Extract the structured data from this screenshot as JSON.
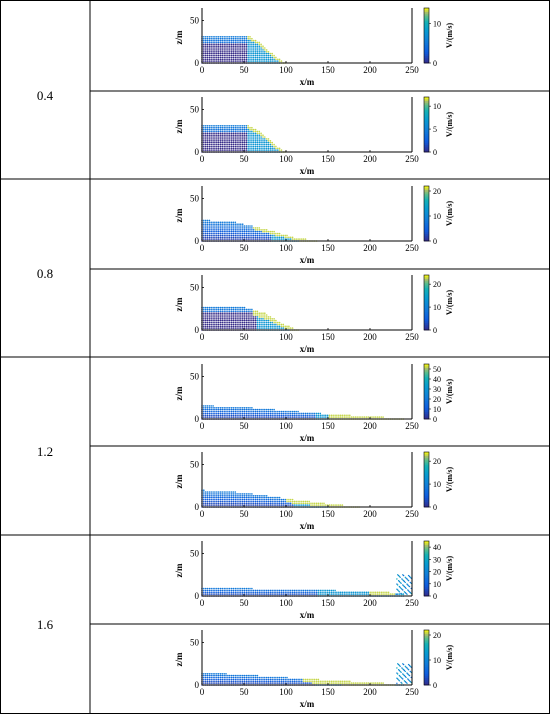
{
  "rows": [
    {
      "label": "0.4"
    },
    {
      "label": "0.8"
    },
    {
      "label": "1.2"
    },
    {
      "label": "1.6"
    }
  ],
  "chart_data": [
    {
      "type": "scatter",
      "row": 0,
      "xlabel": "x/m",
      "ylabel": "z/m",
      "cbar_label": "V/(m/s)",
      "x_ticks": [
        0,
        50,
        100,
        150,
        200,
        250
      ],
      "y_ticks": [
        0,
        50
      ],
      "xlim": [
        0,
        250
      ],
      "ylim": [
        0,
        60
      ],
      "cbar_ticks": [
        0,
        10
      ],
      "cbar_range": [
        0,
        14
      ],
      "bottom_surface": [
        [
          0,
          22
        ],
        [
          65,
          22
        ],
        [
          100,
          0
        ]
      ],
      "front": [
        [
          0,
          32
        ],
        [
          55,
          32
        ],
        [
          68,
          25
        ],
        [
          85,
          10
        ],
        [
          100,
          0
        ]
      ],
      "fast_front": [
        [
          55,
          32
        ],
        [
          68,
          25
        ],
        [
          85,
          10
        ],
        [
          100,
          0
        ]
      ],
      "deposit_extent": 100,
      "debris_right": false
    },
    {
      "type": "scatter",
      "row": 0,
      "xlabel": "x/m",
      "ylabel": "z/m",
      "cbar_label": "V/(m/s)",
      "x_ticks": [
        0,
        50,
        100,
        150,
        200,
        250
      ],
      "y_ticks": [
        0,
        50
      ],
      "xlim": [
        0,
        250
      ],
      "ylim": [
        0,
        60
      ],
      "cbar_ticks": [
        0,
        5,
        10
      ],
      "cbar_range": [
        0,
        12
      ],
      "bottom_surface": [
        [
          0,
          22
        ],
        [
          65,
          22
        ],
        [
          100,
          0
        ]
      ],
      "front": [
        [
          0,
          32
        ],
        [
          55,
          31
        ],
        [
          70,
          24
        ],
        [
          85,
          10
        ],
        [
          100,
          0
        ]
      ],
      "fast_front": [
        [
          55,
          31
        ],
        [
          70,
          24
        ],
        [
          85,
          10
        ],
        [
          100,
          0
        ]
      ],
      "deposit_extent": 100,
      "debris_right": false
    },
    {
      "type": "scatter",
      "row": 1,
      "xlabel": "x/m",
      "ylabel": "z/m",
      "cbar_label": "V/(m/s)",
      "x_ticks": [
        0,
        50,
        100,
        150,
        200,
        250
      ],
      "y_ticks": [
        0,
        50
      ],
      "xlim": [
        0,
        250
      ],
      "ylim": [
        0,
        60
      ],
      "cbar_ticks": [
        0,
        10,
        20
      ],
      "cbar_range": [
        0,
        22
      ],
      "bottom_surface": [],
      "front": [
        [
          0,
          25
        ],
        [
          40,
          22
        ],
        [
          80,
          13
        ],
        [
          110,
          4
        ],
        [
          140,
          0
        ]
      ],
      "fast_front": [
        [
          60,
          18
        ],
        [
          90,
          10
        ],
        [
          120,
          3
        ],
        [
          150,
          0
        ]
      ],
      "deposit_extent": 150,
      "debris_right": false
    },
    {
      "type": "scatter",
      "row": 1,
      "xlabel": "x/m",
      "ylabel": "z/m",
      "cbar_label": "V/(m/s)",
      "x_ticks": [
        0,
        50,
        100,
        150,
        200,
        250
      ],
      "y_ticks": [
        0,
        50
      ],
      "xlim": [
        0,
        250
      ],
      "ylim": [
        0,
        60
      ],
      "cbar_ticks": [
        0,
        10,
        20
      ],
      "cbar_range": [
        0,
        24
      ],
      "bottom_surface": [
        [
          0,
          20
        ],
        [
          70,
          20
        ],
        [
          95,
          0
        ]
      ],
      "front": [
        [
          0,
          28
        ],
        [
          50,
          27
        ],
        [
          75,
          20
        ],
        [
          95,
          8
        ],
        [
          115,
          0
        ]
      ],
      "fast_front": [
        [
          60,
          22
        ],
        [
          80,
          15
        ],
        [
          100,
          5
        ],
        [
          120,
          0
        ]
      ],
      "deposit_extent": 120,
      "debris_right": false
    },
    {
      "type": "scatter",
      "row": 2,
      "xlabel": "x/m",
      "ylabel": "z/m",
      "cbar_label": "V/(m/s)",
      "x_ticks": [
        0,
        50,
        100,
        150,
        200,
        250
      ],
      "y_ticks": [
        0,
        50
      ],
      "xlim": [
        0,
        250
      ],
      "ylim": [
        0,
        60
      ],
      "cbar_ticks": [
        0,
        10,
        20,
        30,
        40,
        50
      ],
      "cbar_range": [
        0,
        55
      ],
      "bottom_surface": [],
      "front": [
        [
          0,
          16
        ],
        [
          50,
          14
        ],
        [
          100,
          10
        ],
        [
          150,
          6
        ],
        [
          200,
          3
        ],
        [
          240,
          1
        ]
      ],
      "fast_front": [
        [
          150,
          4
        ],
        [
          200,
          3
        ],
        [
          240,
          2
        ]
      ],
      "deposit_extent": 245,
      "debris_right": false
    },
    {
      "type": "scatter",
      "row": 2,
      "xlabel": "x/m",
      "ylabel": "z/m",
      "cbar_label": "V/(m/s)",
      "x_ticks": [
        0,
        50,
        100,
        150,
        200,
        250
      ],
      "y_ticks": [
        0,
        50
      ],
      "xlim": [
        0,
        250
      ],
      "ylim": [
        0,
        60
      ],
      "cbar_ticks": [
        0,
        10,
        20
      ],
      "cbar_range": [
        0,
        24
      ],
      "bottom_surface": [],
      "front": [
        [
          0,
          20
        ],
        [
          50,
          17
        ],
        [
          100,
          10
        ],
        [
          150,
          4
        ],
        [
          190,
          0
        ]
      ],
      "fast_front": [
        [
          100,
          9
        ],
        [
          140,
          5
        ],
        [
          180,
          1
        ],
        [
          200,
          0
        ]
      ],
      "deposit_extent": 200,
      "debris_right": false
    },
    {
      "type": "scatter",
      "row": 3,
      "xlabel": "x/m",
      "ylabel": "z/m",
      "cbar_label": "V/(m/s)",
      "x_ticks": [
        0,
        50,
        100,
        150,
        200,
        250
      ],
      "y_ticks": [
        0,
        50
      ],
      "xlim": [
        0,
        250
      ],
      "ylim": [
        0,
        60
      ],
      "cbar_ticks": [
        0,
        10,
        20,
        30,
        40
      ],
      "cbar_range": [
        0,
        45
      ],
      "bottom_surface": [],
      "front": [
        [
          0,
          10
        ],
        [
          50,
          9
        ],
        [
          100,
          8
        ],
        [
          150,
          7
        ],
        [
          200,
          5
        ],
        [
          240,
          4
        ]
      ],
      "fast_front": [
        [
          200,
          4
        ],
        [
          230,
          5
        ]
      ],
      "deposit_extent": 250,
      "debris_right": true
    },
    {
      "type": "scatter",
      "row": 3,
      "xlabel": "x/m",
      "ylabel": "z/m",
      "cbar_label": "V/(m/s)",
      "x_ticks": [
        0,
        50,
        100,
        150,
        200,
        250
      ],
      "y_ticks": [
        0,
        50
      ],
      "xlim": [
        0,
        250
      ],
      "ylim": [
        0,
        60
      ],
      "cbar_ticks": [
        0,
        10,
        20
      ],
      "cbar_range": [
        0,
        22
      ],
      "bottom_surface": [],
      "front": [
        [
          0,
          15
        ],
        [
          50,
          12
        ],
        [
          100,
          9
        ],
        [
          150,
          6
        ],
        [
          200,
          3
        ],
        [
          240,
          1
        ]
      ],
      "fast_front": [
        [
          120,
          7
        ],
        [
          180,
          3
        ],
        [
          230,
          2
        ]
      ],
      "deposit_extent": 245,
      "debris_right": true
    }
  ]
}
